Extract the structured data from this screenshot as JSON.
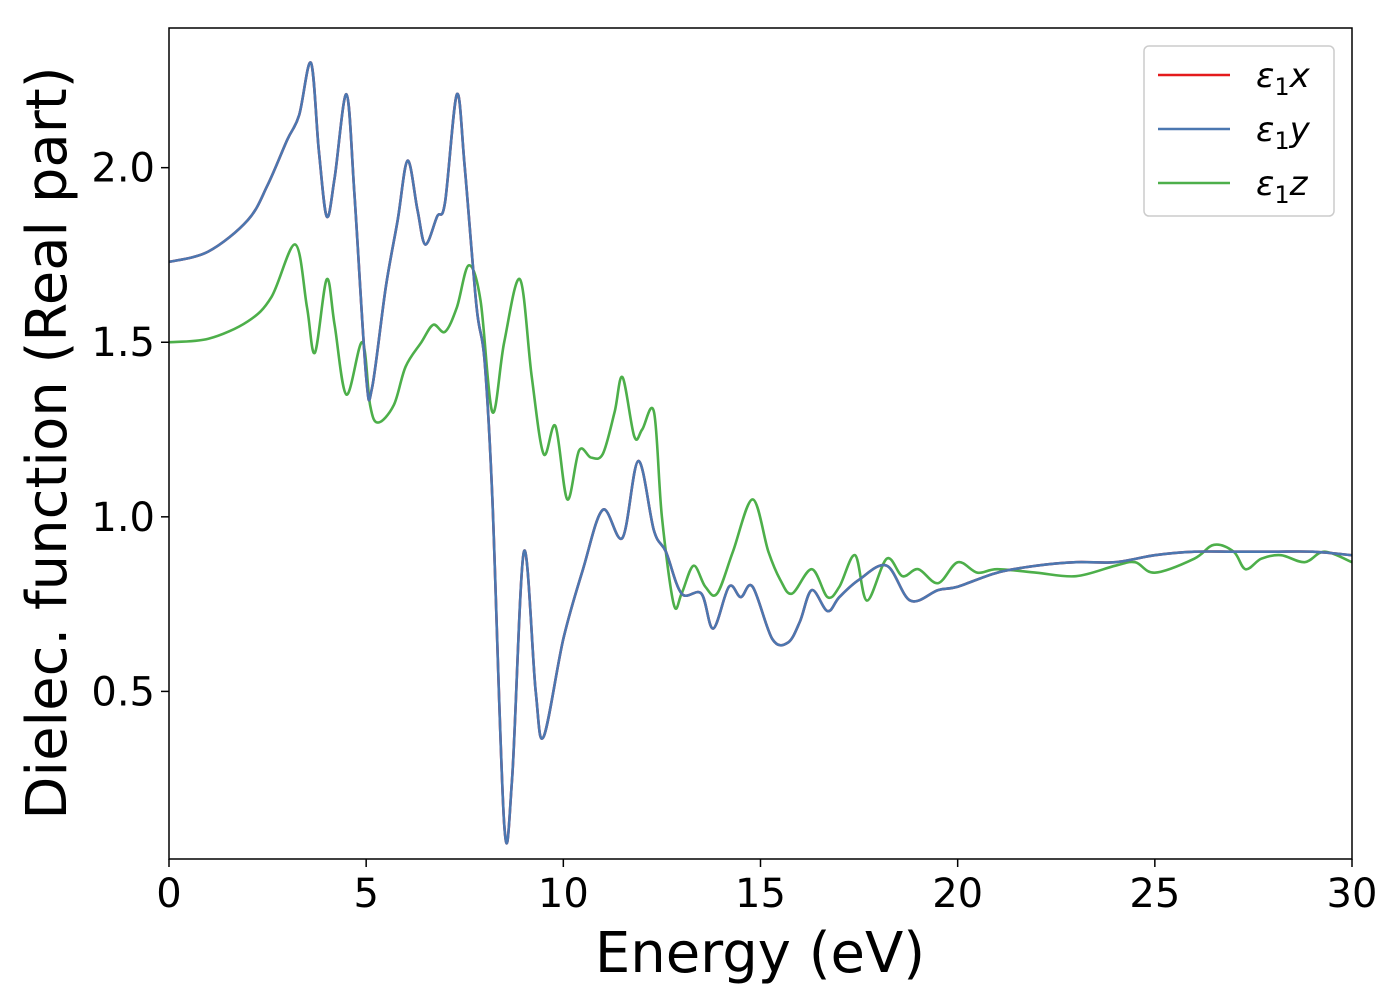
{
  "chart_data": {
    "type": "line",
    "title": "",
    "xlabel": "Energy (eV)",
    "ylabel": "Dielec. function (Real part)",
    "xlim": [
      0,
      30
    ],
    "ylim": [
      0.02,
      2.4
    ],
    "xticks": [
      0,
      5,
      10,
      15,
      20,
      25,
      30
    ],
    "xtick_labels": [
      "0",
      "5",
      "10",
      "15",
      "20",
      "25",
      "30"
    ],
    "yticks": [
      0.5,
      1.0,
      1.5,
      2.0
    ],
    "ytick_labels": [
      "0.5",
      "1.0",
      "1.5",
      "2.0"
    ],
    "grid": false,
    "legend_position": "top-right",
    "series": [
      {
        "name": "ε1x",
        "legend_main": "ε",
        "legend_sub": "1",
        "legend_var": "x",
        "color": "#e41a1c",
        "x": [
          0,
          1,
          2,
          2.5,
          3,
          3.3,
          3.6,
          3.8,
          4.0,
          4.2,
          4.5,
          4.7,
          5.0,
          5.15,
          5.5,
          5.8,
          6.05,
          6.3,
          6.5,
          6.8,
          7.0,
          7.3,
          7.5,
          7.8,
          8.0,
          8.2,
          8.5,
          8.7,
          9.0,
          9.3,
          9.5,
          10.0,
          10.5,
          11.0,
          11.5,
          11.9,
          12.3,
          12.6,
          13.0,
          13.5,
          13.8,
          14.2,
          14.5,
          14.8,
          15.3,
          15.7,
          16.0,
          16.3,
          16.7,
          17.0,
          17.5,
          18.2,
          18.8,
          19.5,
          20.0,
          21.0,
          22.0,
          23.0,
          24.0,
          25.0,
          26.0,
          27.0,
          28.0,
          29.0,
          30.0
        ],
        "y": [
          1.73,
          1.76,
          1.85,
          1.95,
          2.08,
          2.15,
          2.3,
          2.05,
          1.86,
          1.97,
          2.21,
          1.93,
          1.4,
          1.37,
          1.66,
          1.85,
          2.02,
          1.88,
          1.78,
          1.86,
          1.9,
          2.21,
          2.0,
          1.6,
          1.45,
          1.05,
          0.12,
          0.25,
          0.9,
          0.5,
          0.37,
          0.65,
          0.85,
          1.02,
          0.94,
          1.16,
          0.96,
          0.9,
          0.78,
          0.78,
          0.68,
          0.8,
          0.77,
          0.8,
          0.65,
          0.64,
          0.7,
          0.79,
          0.73,
          0.77,
          0.82,
          0.86,
          0.76,
          0.79,
          0.8,
          0.84,
          0.86,
          0.87,
          0.87,
          0.89,
          0.9,
          0.9,
          0.9,
          0.9,
          0.89
        ]
      },
      {
        "name": "ε1y",
        "legend_main": "ε",
        "legend_sub": "1",
        "legend_var": "y",
        "color": "#4b77b0",
        "x": [
          0,
          1,
          2,
          2.5,
          3,
          3.3,
          3.6,
          3.8,
          4.0,
          4.2,
          4.5,
          4.7,
          5.0,
          5.15,
          5.5,
          5.8,
          6.05,
          6.3,
          6.5,
          6.8,
          7.0,
          7.3,
          7.5,
          7.8,
          8.0,
          8.2,
          8.5,
          8.7,
          9.0,
          9.3,
          9.5,
          10.0,
          10.5,
          11.0,
          11.5,
          11.9,
          12.3,
          12.6,
          13.0,
          13.5,
          13.8,
          14.2,
          14.5,
          14.8,
          15.3,
          15.7,
          16.0,
          16.3,
          16.7,
          17.0,
          17.5,
          18.2,
          18.8,
          19.5,
          20.0,
          21.0,
          22.0,
          23.0,
          24.0,
          25.0,
          26.0,
          27.0,
          28.0,
          29.0,
          30.0
        ],
        "y": [
          1.73,
          1.76,
          1.85,
          1.95,
          2.08,
          2.15,
          2.3,
          2.05,
          1.86,
          1.97,
          2.21,
          1.93,
          1.4,
          1.37,
          1.66,
          1.85,
          2.02,
          1.88,
          1.78,
          1.86,
          1.9,
          2.21,
          2.0,
          1.6,
          1.45,
          1.05,
          0.12,
          0.25,
          0.9,
          0.5,
          0.37,
          0.65,
          0.85,
          1.02,
          0.94,
          1.16,
          0.96,
          0.9,
          0.78,
          0.78,
          0.68,
          0.8,
          0.77,
          0.8,
          0.65,
          0.64,
          0.7,
          0.79,
          0.73,
          0.77,
          0.82,
          0.86,
          0.76,
          0.79,
          0.8,
          0.84,
          0.86,
          0.87,
          0.87,
          0.89,
          0.9,
          0.9,
          0.9,
          0.9,
          0.89
        ]
      },
      {
        "name": "ε1z",
        "legend_main": "ε",
        "legend_sub": "1",
        "legend_var": "z",
        "color": "#4daf4a",
        "x": [
          0,
          1,
          2,
          2.6,
          3.2,
          3.5,
          3.7,
          4.0,
          4.2,
          4.5,
          4.9,
          5.1,
          5.3,
          5.7,
          6.0,
          6.4,
          6.7,
          7.0,
          7.3,
          7.6,
          7.9,
          8.2,
          8.5,
          8.9,
          9.2,
          9.5,
          9.8,
          10.1,
          10.4,
          10.7,
          11.0,
          11.3,
          11.5,
          11.8,
          12.0,
          12.3,
          12.5,
          12.8,
          13.0,
          13.3,
          13.6,
          13.9,
          14.3,
          14.8,
          15.2,
          15.5,
          15.8,
          16.3,
          16.7,
          17.0,
          17.4,
          17.7,
          18.2,
          18.6,
          19.0,
          19.5,
          20.0,
          20.5,
          21.0,
          22.0,
          23.0,
          24.0,
          24.5,
          25.0,
          26.0,
          26.5,
          27.0,
          27.3,
          27.7,
          28.2,
          28.8,
          29.3,
          30.0
        ],
        "y": [
          1.5,
          1.51,
          1.56,
          1.63,
          1.78,
          1.6,
          1.47,
          1.68,
          1.55,
          1.35,
          1.5,
          1.32,
          1.27,
          1.32,
          1.43,
          1.5,
          1.55,
          1.53,
          1.6,
          1.72,
          1.62,
          1.3,
          1.5,
          1.68,
          1.4,
          1.18,
          1.26,
          1.05,
          1.19,
          1.17,
          1.18,
          1.3,
          1.4,
          1.23,
          1.25,
          1.3,
          1.0,
          0.75,
          0.78,
          0.86,
          0.8,
          0.78,
          0.9,
          1.05,
          0.9,
          0.82,
          0.78,
          0.85,
          0.77,
          0.8,
          0.89,
          0.76,
          0.88,
          0.83,
          0.85,
          0.81,
          0.87,
          0.84,
          0.85,
          0.84,
          0.83,
          0.86,
          0.87,
          0.84,
          0.88,
          0.92,
          0.9,
          0.85,
          0.88,
          0.89,
          0.87,
          0.9,
          0.87
        ]
      }
    ]
  }
}
